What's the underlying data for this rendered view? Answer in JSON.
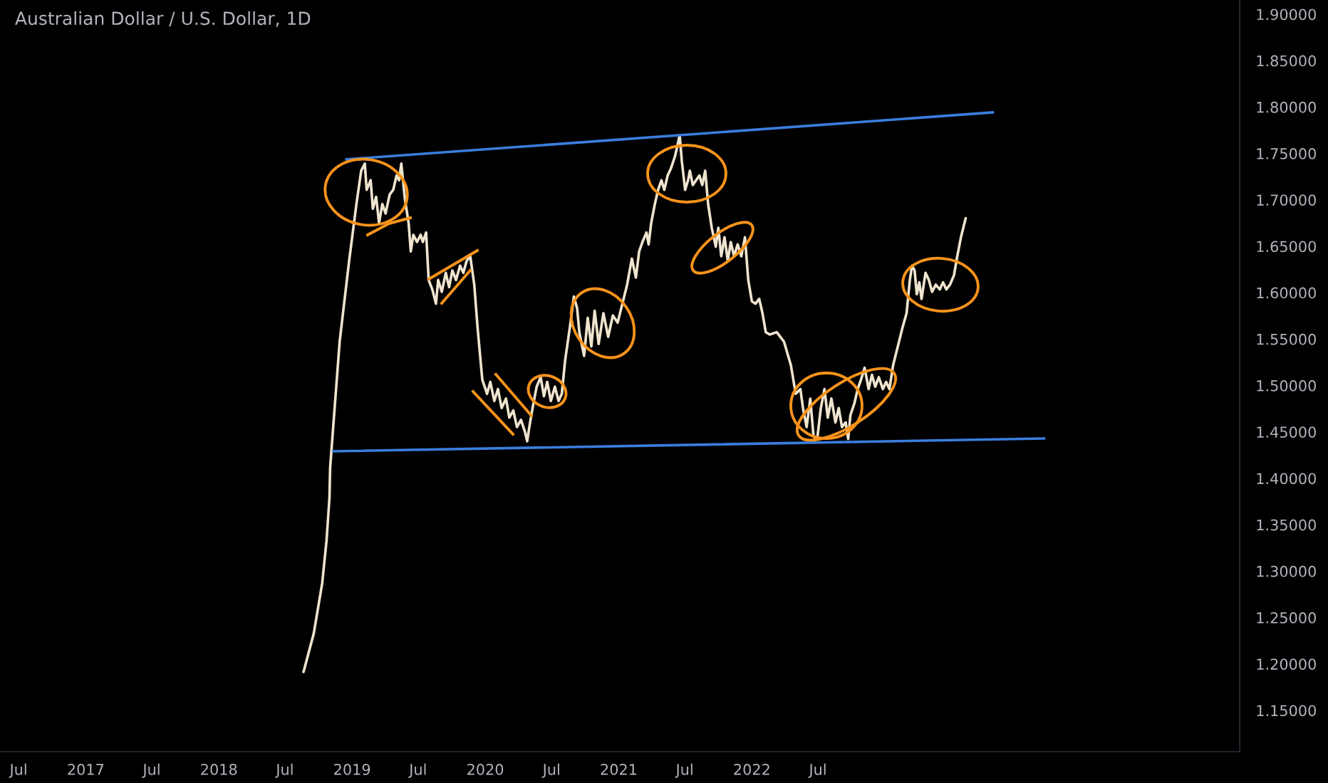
{
  "chart_data": {
    "type": "line",
    "title": "Australian Dollar / U.S. Dollar, 1D",
    "xlim": [
      "2016-05-11",
      "2025-08-30"
    ],
    "xticks": [
      {
        "value": "2016-07-01",
        "label": "Jul"
      },
      {
        "value": "2017-01-01",
        "label": "2017"
      },
      {
        "value": "2017-07-01",
        "label": "Jul"
      },
      {
        "value": "2018-01-01",
        "label": "2018"
      },
      {
        "value": "2018-07-01",
        "label": "Jul"
      },
      {
        "value": "2019-01-01",
        "label": "2019"
      },
      {
        "value": "2019-07-01",
        "label": "Jul"
      },
      {
        "value": "2020-01-01",
        "label": "2020"
      },
      {
        "value": "2020-07-01",
        "label": "Jul"
      },
      {
        "value": "2021-01-01",
        "label": "2021"
      },
      {
        "value": "2021-07-01",
        "label": "Jul"
      },
      {
        "value": "2022-01-01",
        "label": "2022"
      },
      {
        "value": "2022-07-01",
        "label": "Jul"
      }
    ],
    "ylim": [
      1.1055,
      1.9153
    ],
    "yticks": [
      {
        "value": 1.15,
        "label": "1.15000"
      },
      {
        "value": 1.2,
        "label": "1.20000"
      },
      {
        "value": 1.25,
        "label": "1.25000"
      },
      {
        "value": 1.3,
        "label": "1.30000"
      },
      {
        "value": 1.35,
        "label": "1.35000"
      },
      {
        "value": 1.4,
        "label": "1.40000"
      },
      {
        "value": 1.45,
        "label": "1.45000"
      },
      {
        "value": 1.5,
        "label": "1.50000"
      },
      {
        "value": 1.55,
        "label": "1.55000"
      },
      {
        "value": 1.6,
        "label": "1.60000"
      },
      {
        "value": 1.65,
        "label": "1.65000"
      },
      {
        "value": 1.7,
        "label": "1.70000"
      },
      {
        "value": 1.75,
        "label": "1.75000"
      },
      {
        "value": 1.8,
        "label": "1.80000"
      },
      {
        "value": 1.85,
        "label": "1.85000"
      },
      {
        "value": 1.9,
        "label": "1.90000"
      }
    ],
    "grid": false,
    "series": [
      {
        "color": "#efe4cf",
        "x": [
          "2018-08-21",
          "2018-09-18",
          "2018-10-11",
          "2018-10-23",
          "2018-10-31",
          "2018-11-02",
          "2018-11-28",
          "2018-12-24",
          "2019-01-13",
          "2019-01-26",
          "2019-02-05",
          "2019-02-10",
          "2019-02-21",
          "2019-02-27",
          "2019-03-08",
          "2019-03-16",
          "2019-03-25",
          "2019-04-03",
          "2019-04-14",
          "2019-04-24",
          "2019-05-03",
          "2019-05-10",
          "2019-05-16",
          "2019-05-26",
          "2019-06-05",
          "2019-06-11",
          "2019-06-18",
          "2019-06-28",
          "2019-07-08",
          "2019-07-14",
          "2019-07-23",
          "2019-07-30",
          "2019-08-09",
          "2019-08-19",
          "2019-08-25",
          "2019-09-04",
          "2019-09-15",
          "2019-09-24",
          "2019-10-03",
          "2019-10-13",
          "2019-10-24",
          "2019-11-02",
          "2019-11-11",
          "2019-11-21",
          "2019-12-02",
          "2019-12-11",
          "2019-12-24",
          "2020-01-06",
          "2020-01-15",
          "2020-01-26",
          "2020-02-05",
          "2020-02-15",
          "2020-02-27",
          "2020-03-07",
          "2020-03-18",
          "2020-03-28",
          "2020-04-08",
          "2020-04-19",
          "2020-04-25",
          "2020-05-02",
          "2020-05-11",
          "2020-05-21",
          "2020-06-01",
          "2020-06-10",
          "2020-06-19",
          "2020-06-29",
          "2020-07-10",
          "2020-07-20",
          "2020-07-29",
          "2020-08-07",
          "2020-08-20",
          "2020-08-31",
          "2020-09-09",
          "2020-09-15",
          "2020-09-28",
          "2020-10-08",
          "2020-10-18",
          "2020-10-27",
          "2020-11-07",
          "2020-11-20",
          "2020-12-03",
          "2020-12-16",
          "2020-12-29",
          "2021-01-11",
          "2021-01-24",
          "2021-02-06",
          "2021-02-17",
          "2021-02-26",
          "2021-03-07",
          "2021-03-18",
          "2021-03-24",
          "2021-03-31",
          "2021-04-10",
          "2021-04-19",
          "2021-04-28",
          "2021-05-06",
          "2021-05-15",
          "2021-05-24",
          "2021-06-04",
          "2021-06-10",
          "2021-06-17",
          "2021-06-23",
          "2021-07-02",
          "2021-07-10",
          "2021-07-15",
          "2021-07-23",
          "2021-08-01",
          "2021-08-10",
          "2021-08-18",
          "2021-08-26",
          "2021-09-03",
          "2021-09-13",
          "2021-09-24",
          "2021-10-01",
          "2021-10-09",
          "2021-10-18",
          "2021-10-27",
          "2021-11-04",
          "2021-11-13",
          "2021-11-23",
          "2021-12-03",
          "2021-12-13",
          "2021-12-22",
          "2022-01-01",
          "2022-01-11",
          "2022-01-21",
          "2022-01-30",
          "2022-02-08",
          "2022-02-19",
          "2022-03-10",
          "2022-03-30",
          "2022-04-18",
          "2022-05-01",
          "2022-05-14",
          "2022-05-21",
          "2022-05-31",
          "2022-06-10",
          "2022-06-19",
          "2022-06-29",
          "2022-07-09",
          "2022-07-19",
          "2022-07-28",
          "2022-08-07",
          "2022-08-18",
          "2022-08-27",
          "2022-09-05",
          "2022-09-15",
          "2022-09-22",
          "2022-09-28",
          "2022-10-09",
          "2022-10-18",
          "2022-10-27",
          "2022-11-06",
          "2022-11-17",
          "2022-11-26",
          "2022-12-05",
          "2022-12-15",
          "2022-12-26",
          "2023-01-04",
          "2023-01-13",
          "2023-01-23",
          "2023-02-05",
          "2023-02-18",
          "2023-03-01",
          "2023-03-10",
          "2023-03-16",
          "2023-03-23",
          "2023-03-29",
          "2023-04-05",
          "2023-04-11",
          "2023-04-22",
          "2023-05-01",
          "2023-05-10",
          "2023-05-20",
          "2023-05-31",
          "2023-06-09",
          "2023-06-18",
          "2023-06-28",
          "2023-07-09",
          "2023-07-18",
          "2023-07-28",
          "2023-08-10"
        ],
        "values": [
          1.1914,
          1.2328,
          1.2865,
          1.3325,
          1.3785,
          1.4118,
          1.5472,
          1.6342,
          1.6955,
          1.7313,
          1.739,
          1.7108,
          1.7211,
          1.6904,
          1.7032,
          1.6751,
          1.6955,
          1.6853,
          1.7057,
          1.7108,
          1.7262,
          1.7211,
          1.739,
          1.7006,
          1.6751,
          1.6444,
          1.6623,
          1.6546,
          1.6623,
          1.6546,
          1.6648,
          1.6137,
          1.6035,
          1.5881,
          1.6137,
          1.6009,
          1.6214,
          1.606,
          1.6239,
          1.6137,
          1.629,
          1.6214,
          1.6342,
          1.6393,
          1.6086,
          1.5626,
          1.5063,
          1.491,
          1.5038,
          1.4833,
          1.4961,
          1.4757,
          1.4859,
          1.4654,
          1.4731,
          1.4552,
          1.4629,
          1.4501,
          1.4399,
          1.4578,
          1.4782,
          1.4987,
          1.5089,
          1.4884,
          1.5038,
          1.4833,
          1.4987,
          1.4833,
          1.491,
          1.5268,
          1.5626,
          1.5958,
          1.583,
          1.5575,
          1.5319,
          1.5728,
          1.5421,
          1.5805,
          1.5447,
          1.5779,
          1.5524,
          1.5754,
          1.5677,
          1.5881,
          1.6086,
          1.6367,
          1.6163,
          1.6444,
          1.6546,
          1.6648,
          1.652,
          1.6751,
          1.6955,
          1.7108,
          1.7211,
          1.7108,
          1.7262,
          1.7338,
          1.7466,
          1.7569,
          1.7696,
          1.7415,
          1.7108,
          1.7211,
          1.7313,
          1.716,
          1.7211,
          1.7262,
          1.716,
          1.7313,
          1.6955,
          1.6699,
          1.6495,
          1.6699,
          1.6393,
          1.6597,
          1.6342,
          1.6546,
          1.6393,
          1.652,
          1.6393,
          1.6597,
          1.6137,
          1.5907,
          1.5881,
          1.5933,
          1.5779,
          1.5575,
          1.5549,
          1.5575,
          1.5472,
          1.5217,
          1.491,
          1.4961,
          1.4757,
          1.4552,
          1.4859,
          1.445,
          1.4424,
          1.4757,
          1.4961,
          1.4654,
          1.4859,
          1.4603,
          1.4757,
          1.4552,
          1.4603,
          1.4424,
          1.468,
          1.4808,
          1.4961,
          1.5063,
          1.5191,
          1.4961,
          1.5115,
          1.4987,
          1.5089,
          1.4961,
          1.5038,
          1.4961,
          1.5217,
          1.5421,
          1.5626,
          1.5779,
          1.6137,
          1.629,
          1.6239,
          1.5984,
          1.6111,
          1.5933,
          1.6214,
          1.6137,
          1.6009,
          1.6086,
          1.6035,
          1.6111,
          1.6035,
          1.6086,
          1.6188,
          1.6393,
          1.6597,
          1.6802
        ]
      },
      {
        "type": "line",
        "color": "#3b7ddd",
        "x": [
          "2018-12-16",
          "2023-10-24"
        ],
        "values": [
          1.7436,
          1.7942
        ]
      },
      {
        "type": "line",
        "color": "#3b7ddd",
        "x": [
          "2018-11-10",
          "2024-03-13"
        ],
        "values": [
          1.4291,
          1.4429
        ]
      }
    ]
  }
}
